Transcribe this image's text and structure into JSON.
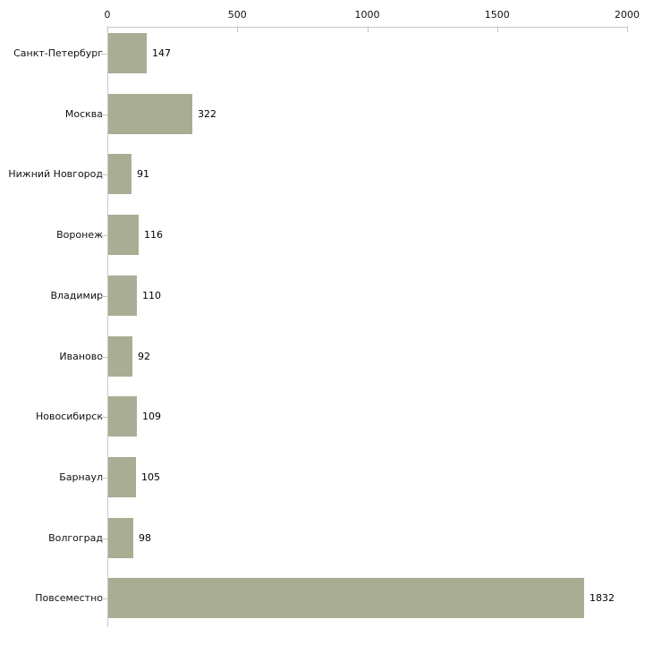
{
  "chart_data": {
    "type": "bar",
    "orientation": "horizontal",
    "title": "",
    "xlabel": "",
    "ylabel": "",
    "categories": [
      "Санкт-Петербург",
      "Москва",
      "Нижний Новгород",
      "Воронеж",
      "Владимир",
      "Иваново",
      "Новосибирск",
      "Барнаул",
      "Волгоград",
      "Повсеместно"
    ],
    "values": [
      147,
      322,
      91,
      116,
      110,
      92,
      109,
      105,
      98,
      1832
    ],
    "value_labels": [
      "147",
      "322",
      "91",
      "116",
      "110",
      "92",
      "109",
      "105",
      "98",
      "1832"
    ],
    "xlim": [
      0,
      2000
    ],
    "x_ticks": [
      0,
      500,
      1000,
      1500,
      2000
    ],
    "x_tick_labels": [
      "0",
      "500",
      "1000",
      "1500",
      "2000"
    ],
    "x_axis_position": "top",
    "grid": false,
    "legend": null,
    "colors": {
      "bar_fill": "#a9ad93",
      "axis_line": "#c9c9c9",
      "tick_mark": "#c5c8ac",
      "text": "#111111",
      "background": "#ffffff"
    }
  }
}
